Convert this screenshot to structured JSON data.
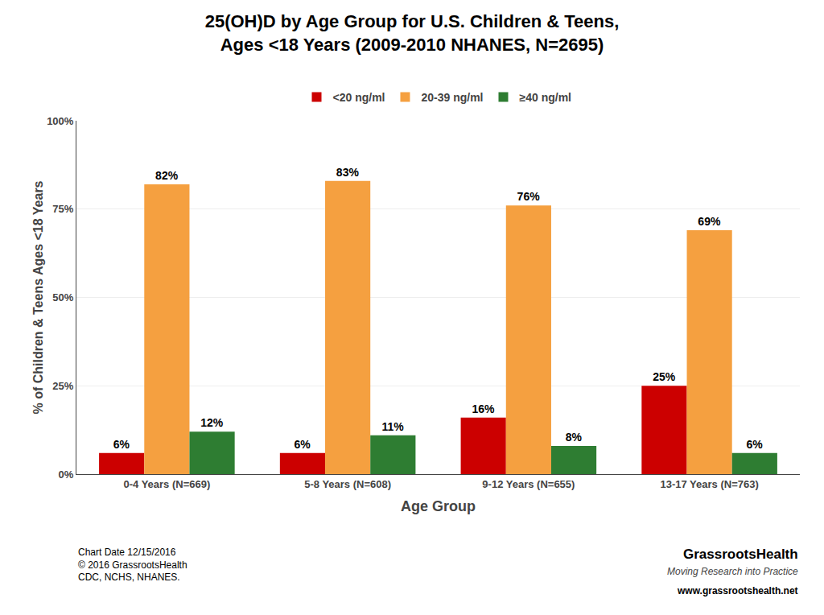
{
  "chart_data": {
    "type": "bar",
    "title": "25(OH)D by Age Group for U.S. Children & Teens,\nAges <18 Years (2009-2010 NHANES, N=2695)",
    "x_label": "Age Group",
    "y_label": "% of Children & Teens Ages <18 Years",
    "categories": [
      "0-4 Years (N=669)",
      "5-8 Years (N=608)",
      "9-12 Years (N=655)",
      "13-17 Years (N=763)"
    ],
    "series": [
      {
        "name": "<20 ng/ml",
        "color": "#CC0000",
        "values": [
          6,
          6,
          16,
          25
        ],
        "value_labels": [
          "6%",
          "6%",
          "16%",
          "25%"
        ]
      },
      {
        "name": "20-39 ng/ml",
        "color": "#F5A040",
        "values": [
          82,
          83,
          76,
          69
        ],
        "value_labels": [
          "82%",
          "83%",
          "76%",
          "69%"
        ]
      },
      {
        "name": "≥40 ng/ml",
        "color": "#2E7D32",
        "values": [
          12,
          11,
          8,
          6
        ],
        "value_labels": [
          "12%",
          "11%",
          "8%",
          "6%"
        ]
      }
    ],
    "ylim": [
      0,
      100
    ],
    "yticks": [
      {
        "value": 0,
        "label": "0%"
      },
      {
        "value": 25,
        "label": "25%"
      },
      {
        "value": 50,
        "label": "50%"
      },
      {
        "value": 75,
        "label": "75%"
      },
      {
        "value": 100,
        "label": "100%"
      }
    ],
    "grid": true,
    "legend": "top",
    "data_labels": true,
    "annotations": [
      "Chart Date 12/15/2016\n© 2016 GrassrootsHealth\nCDC, NCHS, NHANES.",
      "GrassrootsHealth",
      "Moving Research into Practice",
      "www.grassrootshealth.net"
    ]
  }
}
